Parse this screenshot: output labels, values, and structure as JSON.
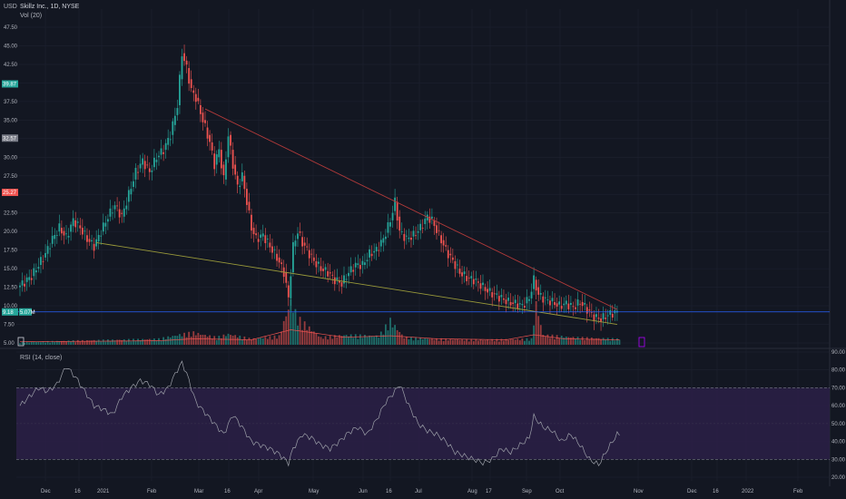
{
  "legend": {
    "currency": "USD",
    "symbol": "Skillz Inc., 1D, NYSE",
    "volume": "Vol (20)",
    "rsi": "RSI (14, close)"
  },
  "colors": {
    "background": "#131722",
    "grid": "#1e2230",
    "up": "#26a69a",
    "down": "#ef5350",
    "trendline_upper": "#b33a3a",
    "trendline_lower": "#9a9a3a",
    "current_price_line": "#2962ff",
    "rsi_line": "#9c9fa8",
    "rsi_band": "#2a1f45"
  },
  "chart_data": [
    {
      "type": "candlestick",
      "y_ticks": [
        "47.50",
        "45.00",
        "42.50",
        "40.00",
        "37.50",
        "35.00",
        "32.50",
        "30.00",
        "27.50",
        "25.00",
        "22.50",
        "20.00",
        "17.50",
        "15.00",
        "12.50",
        "10.00",
        "7.50",
        "5.00"
      ],
      "ylim": [
        5,
        47.5
      ],
      "x_ticks": [
        "Dec",
        "16",
        "2021",
        "Feb",
        "Mar",
        "16",
        "Apr",
        "May",
        "Jun",
        "16",
        "Jul",
        "Aug",
        "17",
        "Sep",
        "Oct",
        "Nov",
        "Dec",
        "16",
        "2022",
        "Feb"
      ],
      "price_tags": [
        {
          "label": "39.87",
          "value": 39.87,
          "color": "#26a69a"
        },
        {
          "label": "32.57",
          "value": 32.57,
          "color": "#787b86"
        },
        {
          "label": "25.27",
          "value": 25.27,
          "color": "#ef5350"
        },
        {
          "label": "9.18",
          "value": 9.18,
          "color": "#26a69a"
        }
      ],
      "volume_tag": "5.07M",
      "price_path": [
        [
          0,
          12.5
        ],
        [
          3,
          13.2
        ],
        [
          6,
          14.0
        ],
        [
          9,
          15.5
        ],
        [
          12,
          17.0
        ],
        [
          15,
          19.0
        ],
        [
          18,
          20.5
        ],
        [
          21,
          19.2
        ],
        [
          24,
          21.5
        ],
        [
          27,
          20.5
        ],
        [
          30,
          19.0
        ],
        [
          33,
          18.0
        ],
        [
          36,
          20.0
        ],
        [
          39,
          22.0
        ],
        [
          42,
          23.5
        ],
        [
          45,
          22.0
        ],
        [
          48,
          25.0
        ],
        [
          51,
          28.0
        ],
        [
          54,
          29.5
        ],
        [
          57,
          28.0
        ],
        [
          60,
          30.0
        ],
        [
          63,
          31.0
        ],
        [
          66,
          33.0
        ],
        [
          69,
          37.0
        ],
        [
          71,
          44.0
        ],
        [
          73,
          42.0
        ],
        [
          75,
          39.0
        ],
        [
          77,
          38.0
        ],
        [
          79,
          36.0
        ],
        [
          81,
          34.0
        ],
        [
          83,
          32.0
        ],
        [
          85,
          29.0
        ],
        [
          87,
          31.0
        ],
        [
          89,
          27.0
        ],
        [
          91,
          33.0
        ],
        [
          93,
          29.0
        ],
        [
          95,
          26.0
        ],
        [
          97,
          27.5
        ],
        [
          99,
          24.0
        ],
        [
          101,
          20.5
        ],
        [
          103,
          19.0
        ],
        [
          106,
          19.5
        ],
        [
          109,
          18.0
        ],
        [
          112,
          16.5
        ],
        [
          115,
          14.5
        ],
        [
          117,
          11.0
        ],
        [
          119,
          18.0
        ],
        [
          121,
          20.0
        ],
        [
          123,
          18.5
        ],
        [
          125,
          17.5
        ],
        [
          128,
          16.0
        ],
        [
          131,
          15.0
        ],
        [
          134,
          14.5
        ],
        [
          137,
          13.5
        ],
        [
          140,
          13.0
        ],
        [
          143,
          14.5
        ],
        [
          146,
          15.5
        ],
        [
          149,
          15.5
        ],
        [
          152,
          17.0
        ],
        [
          155,
          17.5
        ],
        [
          158,
          19.0
        ],
        [
          161,
          21.5
        ],
        [
          163,
          24.0
        ],
        [
          165,
          20.0
        ],
        [
          168,
          19.0
        ],
        [
          171,
          19.5
        ],
        [
          174,
          20.5
        ],
        [
          177,
          22.0
        ],
        [
          179,
          21.5
        ],
        [
          182,
          19.5
        ],
        [
          185,
          17.5
        ],
        [
          188,
          16.0
        ],
        [
          191,
          14.5
        ],
        [
          194,
          13.8
        ],
        [
          197,
          13.5
        ],
        [
          200,
          12.8
        ],
        [
          203,
          12.0
        ],
        [
          206,
          11.5
        ],
        [
          209,
          11.0
        ],
        [
          212,
          10.5
        ],
        [
          215,
          10.3
        ],
        [
          218,
          10.0
        ],
        [
          221,
          11.0
        ],
        [
          223,
          13.5
        ],
        [
          225,
          11.5
        ],
        [
          228,
          10.8
        ],
        [
          231,
          10.5
        ],
        [
          234,
          10.0
        ],
        [
          237,
          10.3
        ],
        [
          240,
          9.8
        ],
        [
          243,
          10.5
        ],
        [
          246,
          9.5
        ],
        [
          249,
          8.5
        ],
        [
          252,
          8.2
        ],
        [
          255,
          8.8
        ],
        [
          258,
          9.1
        ]
      ],
      "n_days": 260,
      "volume_path": [
        [
          0,
          0.05
        ],
        [
          20,
          0.08
        ],
        [
          40,
          0.1
        ],
        [
          60,
          0.12
        ],
        [
          68,
          0.2
        ],
        [
          75,
          0.25
        ],
        [
          85,
          0.15
        ],
        [
          90,
          0.22
        ],
        [
          100,
          0.12
        ],
        [
          112,
          0.18
        ],
        [
          117,
          0.9
        ],
        [
          120,
          0.55
        ],
        [
          130,
          0.15
        ],
        [
          140,
          0.2
        ],
        [
          155,
          0.18
        ],
        [
          160,
          0.5
        ],
        [
          166,
          0.15
        ],
        [
          180,
          0.12
        ],
        [
          200,
          0.1
        ],
        [
          221,
          0.12
        ],
        [
          223,
          0.85
        ],
        [
          226,
          0.2
        ],
        [
          240,
          0.15
        ],
        [
          258,
          0.12
        ]
      ],
      "volume_ma_path": [
        [
          0,
          0.06
        ],
        [
          60,
          0.08
        ],
        [
          75,
          0.12
        ],
        [
          100,
          0.1
        ],
        [
          117,
          0.3
        ],
        [
          125,
          0.25
        ],
        [
          140,
          0.15
        ],
        [
          160,
          0.18
        ],
        [
          180,
          0.12
        ],
        [
          210,
          0.1
        ],
        [
          222,
          0.2
        ],
        [
          235,
          0.12
        ],
        [
          258,
          0.1
        ]
      ],
      "trendline_upper": {
        "from": [
          80,
          36.5
        ],
        "to": [
          258,
          9.5
        ]
      },
      "trendline_lower": {
        "from": [
          33,
          18.5
        ],
        "to": [
          258,
          7.5
        ]
      },
      "current_price": 9.18
    },
    {
      "type": "line",
      "name": "RSI",
      "y_ticks": [
        "90.00",
        "80.00",
        "70.00",
        "60.00",
        "50.00",
        "40.00",
        "30.00",
        "20.00"
      ],
      "ylim": [
        18,
        90
      ],
      "bands": [
        30,
        70
      ],
      "rsi_path": [
        [
          0,
          60
        ],
        [
          4,
          65
        ],
        [
          8,
          70
        ],
        [
          12,
          68
        ],
        [
          16,
          72
        ],
        [
          20,
          82
        ],
        [
          24,
          76
        ],
        [
          28,
          68
        ],
        [
          32,
          60
        ],
        [
          36,
          58
        ],
        [
          40,
          55
        ],
        [
          44,
          65
        ],
        [
          48,
          70
        ],
        [
          52,
          74
        ],
        [
          56,
          72
        ],
        [
          60,
          66
        ],
        [
          64,
          70
        ],
        [
          68,
          80
        ],
        [
          70,
          84
        ],
        [
          72,
          78
        ],
        [
          76,
          62
        ],
        [
          80,
          56
        ],
        [
          84,
          50
        ],
        [
          88,
          44
        ],
        [
          92,
          55
        ],
        [
          96,
          48
        ],
        [
          100,
          40
        ],
        [
          104,
          38
        ],
        [
          108,
          36
        ],
        [
          112,
          33
        ],
        [
          116,
          28
        ],
        [
          118,
          36
        ],
        [
          122,
          44
        ],
        [
          126,
          42
        ],
        [
          130,
          38
        ],
        [
          134,
          36
        ],
        [
          138,
          40
        ],
        [
          142,
          45
        ],
        [
          146,
          48
        ],
        [
          150,
          44
        ],
        [
          154,
          52
        ],
        [
          158,
          62
        ],
        [
          162,
          68
        ],
        [
          164,
          72
        ],
        [
          168,
          60
        ],
        [
          172,
          50
        ],
        [
          176,
          46
        ],
        [
          180,
          44
        ],
        [
          184,
          40
        ],
        [
          188,
          34
        ],
        [
          192,
          32
        ],
        [
          196,
          30
        ],
        [
          200,
          28
        ],
        [
          204,
          30
        ],
        [
          208,
          36
        ],
        [
          212,
          34
        ],
        [
          216,
          38
        ],
        [
          220,
          42
        ],
        [
          222,
          54
        ],
        [
          226,
          48
        ],
        [
          230,
          46
        ],
        [
          234,
          40
        ],
        [
          238,
          44
        ],
        [
          242,
          38
        ],
        [
          246,
          30
        ],
        [
          250,
          27
        ],
        [
          254,
          36
        ],
        [
          258,
          44
        ]
      ]
    }
  ]
}
